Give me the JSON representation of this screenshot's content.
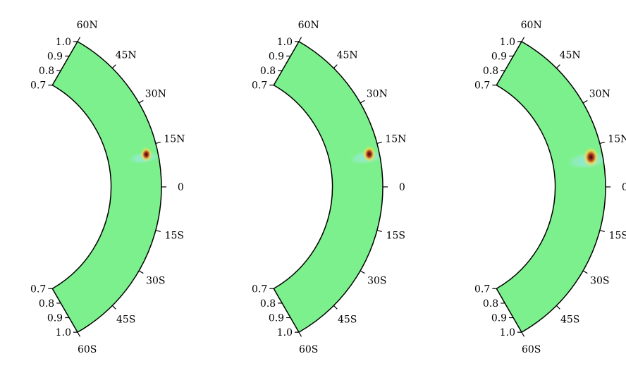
{
  "figure": {
    "panels": [
      {
        "id": "panel-1",
        "feature": {
          "lat": 12,
          "r": 0.93,
          "strength": 0.7,
          "halo": 0.7
        }
      },
      {
        "id": "panel-2",
        "feature": {
          "lat": 12,
          "r": 0.94,
          "strength": 0.8,
          "halo": 0.8
        }
      },
      {
        "id": "panel-3",
        "feature": {
          "lat": 11,
          "r": 0.93,
          "strength": 1.0,
          "halo": 1.0
        }
      }
    ],
    "latitude_ticks": [
      {
        "lat": 60,
        "label": "60N"
      },
      {
        "lat": 45,
        "label": "45N"
      },
      {
        "lat": 30,
        "label": "30N"
      },
      {
        "lat": 15,
        "label": "15N"
      },
      {
        "lat": 0,
        "label": "0"
      },
      {
        "lat": -15,
        "label": "15S"
      },
      {
        "lat": -30,
        "label": "30S"
      },
      {
        "lat": -45,
        "label": "45S"
      },
      {
        "lat": -60,
        "label": "60S"
      }
    ],
    "radius_ticks": [
      {
        "r": 1.0,
        "label": "1.0"
      },
      {
        "r": 0.9,
        "label": "0.9"
      },
      {
        "r": 0.8,
        "label": "0.8"
      },
      {
        "r": 0.7,
        "label": "0.7"
      }
    ],
    "colors": {
      "background_field": "#7cf08c",
      "outline": "#000000",
      "feature_core": "#3a0a0a",
      "feature_mid": "#c0401a",
      "feature_outer": "#f4e65a",
      "feature_halo": "#8ee8e0"
    }
  }
}
